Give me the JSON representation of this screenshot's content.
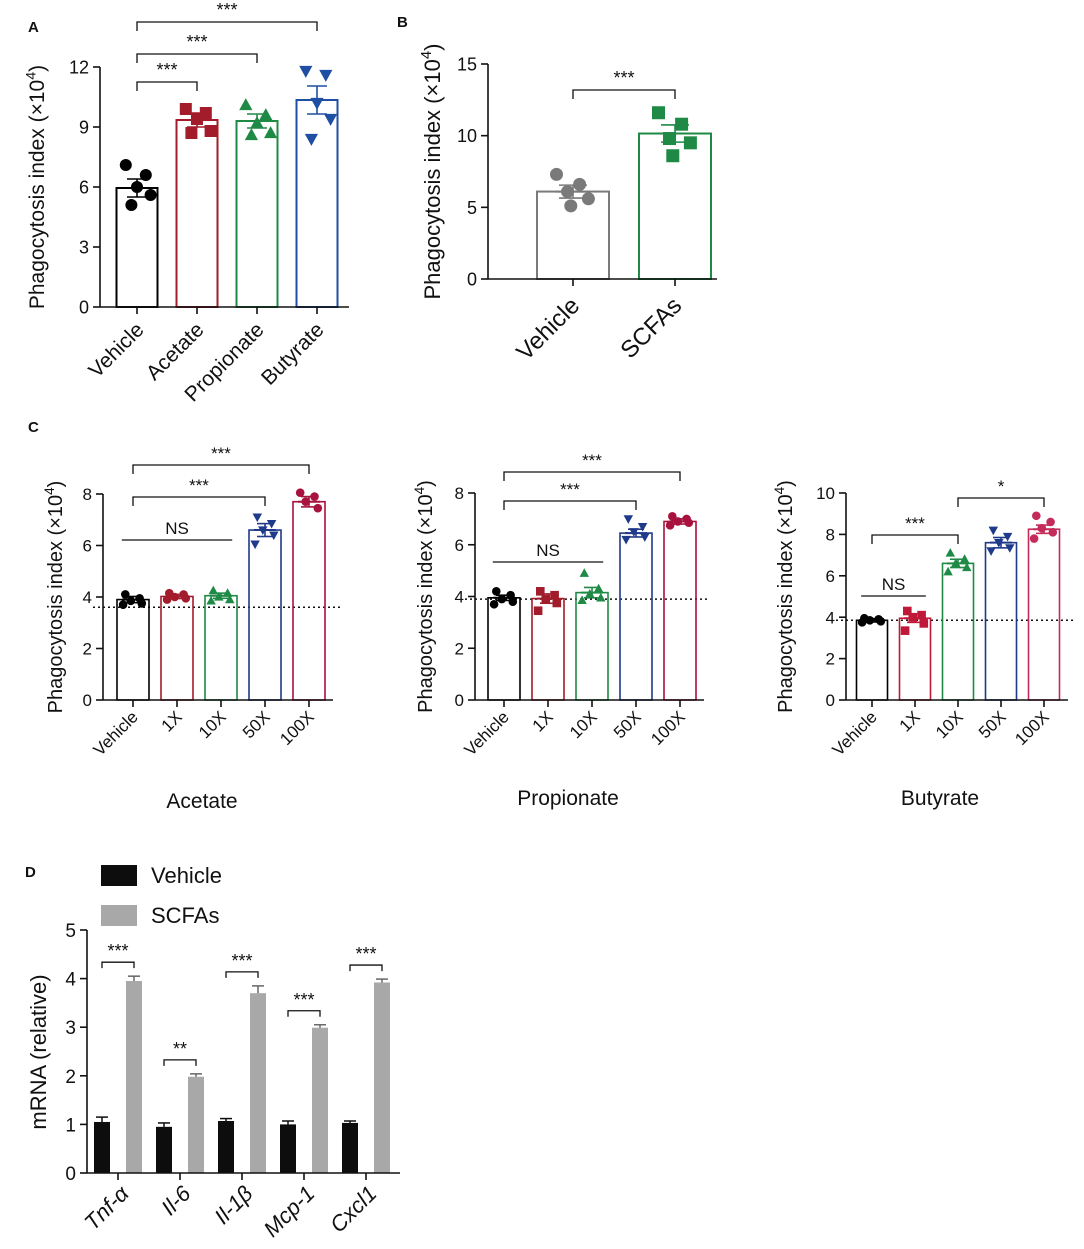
{
  "chart_data": [
    {
      "id": "A",
      "type": "bar",
      "panel_label": "A",
      "ylabel": "Phagocytosis index (×10⁴)",
      "ylabel_main": "Phagocytosis index (×10",
      "ylabel_sup": "4",
      "ylabel_close": ")",
      "ylim": [
        0,
        12
      ],
      "yticks": [
        "0",
        "3",
        "6",
        "9",
        "12"
      ],
      "categories": [
        "Vehicle",
        "Acetate",
        "Propionate",
        "Butyrate"
      ],
      "values": [
        5.95,
        9.35,
        9.3,
        10.35
      ],
      "errors": [
        0.45,
        0.35,
        0.35,
        0.7
      ],
      "colors": [
        "#000000",
        "#a21c2b",
        "#1f8a45",
        "#1f4fa3"
      ],
      "markers": [
        "circle",
        "square",
        "triangle",
        "triangle-down"
      ],
      "points": [
        [
          7.1,
          6.6,
          6.0,
          5.6,
          5.1
        ],
        [
          9.9,
          9.7,
          9.4,
          8.8,
          8.7
        ],
        [
          10.1,
          9.6,
          9.2,
          8.7,
          8.6
        ],
        [
          11.8,
          11.6,
          10.2,
          9.4,
          8.4
        ]
      ],
      "significance": [
        {
          "from": 0,
          "to": 1,
          "label": "***"
        },
        {
          "from": 0,
          "to": 2,
          "label": "***"
        },
        {
          "from": 0,
          "to": 3,
          "label": "***"
        }
      ]
    },
    {
      "id": "B",
      "type": "bar",
      "panel_label": "B",
      "ylabel": "Phagocytosis index (×10⁴)",
      "ylabel_main": "Phagocytosis index (×10",
      "ylabel_sup": "4",
      "ylabel_close": ")",
      "ylim": [
        0,
        15
      ],
      "yticks": [
        "0",
        "5",
        "10",
        "15"
      ],
      "categories": [
        "Vehicle",
        "SCFAs"
      ],
      "values": [
        6.1,
        10.15
      ],
      "errors": [
        0.45,
        0.6
      ],
      "colors": [
        "#7a7a7a",
        "#1f8a45"
      ],
      "markers": [
        "circle",
        "square"
      ],
      "points": [
        [
          7.3,
          6.6,
          6.1,
          5.6,
          5.1
        ],
        [
          11.6,
          10.8,
          9.8,
          9.5,
          8.6
        ]
      ],
      "significance": [
        {
          "from": 0,
          "to": 1,
          "label": "***"
        }
      ]
    },
    {
      "id": "C1",
      "type": "bar",
      "panel_label": "C",
      "title": "Acetate",
      "ylabel": "Phagocytosis index (×10⁴)",
      "ylabel_main": "Phagocytosis index (×10",
      "ylabel_sup": "4",
      "ylabel_close": ")",
      "ylim": [
        0,
        8
      ],
      "yticks": [
        "0",
        "2",
        "4",
        "6",
        "8"
      ],
      "categories": [
        "Vehicle",
        "1X",
        "10X",
        "50X",
        "100X"
      ],
      "values": [
        3.9,
        4.02,
        4.05,
        6.6,
        7.7
      ],
      "errors": [
        0.12,
        0.08,
        0.1,
        0.25,
        0.2
      ],
      "colors": [
        "#000000",
        "#a21c2b",
        "#1f8a45",
        "#1f3a8a",
        "#a8123e"
      ],
      "markers": [
        "circle",
        "circle",
        "triangle",
        "triangle-down",
        "circle"
      ],
      "points": [
        [
          4.1,
          3.95,
          3.85,
          3.75,
          3.7
        ],
        [
          4.15,
          4.1,
          4.0,
          3.95,
          3.9
        ],
        [
          4.25,
          4.15,
          4.0,
          3.9,
          3.85
        ],
        [
          7.1,
          6.85,
          6.6,
          6.4,
          6.05
        ],
        [
          8.05,
          7.9,
          7.7,
          7.45
        ]
      ],
      "reference_line": 3.6,
      "significance": [
        {
          "from": 0,
          "to": 2,
          "label": "NS",
          "style": "line"
        },
        {
          "from": 0,
          "to": 3,
          "label": "***"
        },
        {
          "from": 0,
          "to": 4,
          "label": "***"
        }
      ]
    },
    {
      "id": "C2",
      "type": "bar",
      "panel_label": "",
      "title": "Propionate",
      "ylabel": "Phagocytosis index (×10⁴)",
      "ylabel_main": "Phagocytosis index (×10",
      "ylabel_sup": "4",
      "ylabel_close": ")",
      "ylim": [
        0,
        8
      ],
      "yticks": [
        "0",
        "2",
        "4",
        "6",
        "8"
      ],
      "categories": [
        "Vehicle",
        "1X",
        "10X",
        "50X",
        "100X"
      ],
      "values": [
        3.95,
        3.92,
        4.15,
        6.45,
        6.9
      ],
      "errors": [
        0.1,
        0.18,
        0.2,
        0.15,
        0.1
      ],
      "colors": [
        "#000000",
        "#a21c2b",
        "#1f8a45",
        "#1f3a8a",
        "#a8123e"
      ],
      "markers": [
        "circle",
        "square",
        "triangle",
        "triangle-down",
        "circle"
      ],
      "points": [
        [
          4.2,
          4.05,
          3.9,
          3.8,
          3.7
        ],
        [
          4.2,
          4.05,
          3.9,
          3.75,
          3.45
        ],
        [
          4.9,
          4.3,
          4.1,
          3.95,
          3.85
        ],
        [
          7.0,
          6.7,
          6.5,
          6.3,
          6.2
        ],
        [
          7.1,
          7.0,
          6.9,
          6.85,
          6.75
        ]
      ],
      "reference_line": 3.9,
      "significance": [
        {
          "from": 0,
          "to": 2,
          "label": "NS",
          "style": "line"
        },
        {
          "from": 0,
          "to": 3,
          "label": "***"
        },
        {
          "from": 0,
          "to": 4,
          "label": "***"
        }
      ]
    },
    {
      "id": "C3",
      "type": "bar",
      "panel_label": "",
      "title": "Butyrate",
      "ylabel": "Phagocytosis index (×10⁴)",
      "ylabel_main": "Phagocytosis index (×10",
      "ylabel_sup": "4",
      "ylabel_close": ")",
      "ylim": [
        0,
        10
      ],
      "yticks": [
        "0",
        "2",
        "4",
        "6",
        "8",
        "10"
      ],
      "categories": [
        "Vehicle",
        "1X",
        "10X",
        "50X",
        "100X"
      ],
      "values": [
        3.85,
        3.95,
        6.6,
        7.6,
        8.25
      ],
      "errors": [
        0.08,
        0.2,
        0.2,
        0.25,
        0.2
      ],
      "colors": [
        "#000000",
        "#c01838",
        "#1f8a45",
        "#1f3a8a",
        "#c42a5a"
      ],
      "markers": [
        "circle",
        "square",
        "triangle",
        "triangle-down",
        "circle"
      ],
      "points": [
        [
          3.95,
          3.9,
          3.85,
          3.8,
          3.75
        ],
        [
          4.3,
          4.1,
          4.0,
          3.7,
          3.35
        ],
        [
          7.1,
          6.8,
          6.6,
          6.4,
          6.2
        ],
        [
          8.2,
          7.9,
          7.6,
          7.35,
          7.2
        ],
        [
          8.9,
          8.6,
          8.3,
          8.1,
          7.8
        ]
      ],
      "reference_line": 3.85,
      "significance": [
        {
          "from": 0,
          "to": 1,
          "label": "NS",
          "style": "line"
        },
        {
          "from": 0,
          "to": 2,
          "label": "***"
        },
        {
          "from": 2,
          "to": 4,
          "label": "*"
        }
      ]
    },
    {
      "id": "D",
      "type": "bar",
      "panel_label": "D",
      "ylabel": "mRNA (relative)",
      "ylim": [
        0,
        5
      ],
      "yticks": [
        "0",
        "1",
        "2",
        "3",
        "4",
        "5"
      ],
      "categories": [
        "Tnf-α",
        "Il-6",
        "Il-1β",
        "Mcp-1",
        "Cxcl1"
      ],
      "series": [
        {
          "name": "Vehicle",
          "color": "#0d0d0d",
          "values": [
            1.05,
            0.95,
            1.07,
            1.0,
            1.03
          ],
          "errors": [
            0.1,
            0.08,
            0.05,
            0.07,
            0.04
          ]
        },
        {
          "name": "SCFAs",
          "color": "#a8a8a8",
          "values": [
            3.95,
            1.98,
            3.7,
            2.99,
            3.92
          ],
          "errors": [
            0.1,
            0.06,
            0.15,
            0.06,
            0.07
          ]
        }
      ],
      "significance": [
        "***",
        "**",
        "***",
        "***",
        "***"
      ],
      "legend_position": "top-left"
    }
  ]
}
